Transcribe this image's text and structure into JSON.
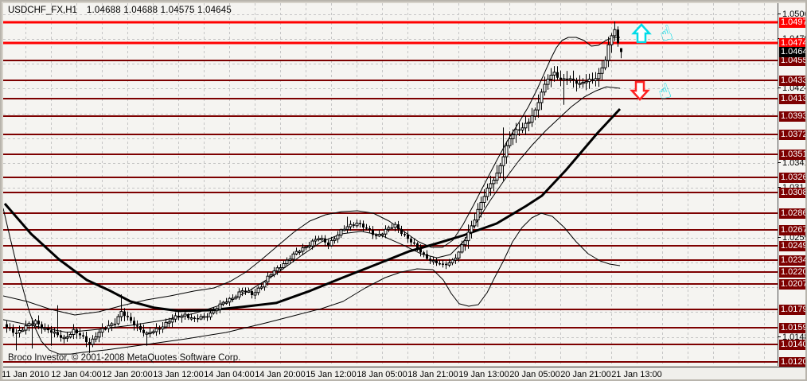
{
  "header": {
    "symbol_period": "USDCHF_FX,H1",
    "ohlc": "1.04688 1.04688 1.04575 1.04645"
  },
  "footer": {
    "copyright": "Broco Investor, © 2001-2008 MetaQuotes Software Corp."
  },
  "colors": {
    "background": "#F5F4F1",
    "window_chrome": "#D6D2CA",
    "grid": "#C6C6C6",
    "level_line": "#7D0000",
    "signal_line": "#FF0000",
    "candle": "#000000",
    "current_price_box": "#000000",
    "box_text": "#FFFFFF",
    "axis_text": "#000000",
    "arrow_up": "#00DCE8",
    "arrow_down": "#FF2222",
    "hand_icon": "#00DCE8"
  },
  "chart_data": {
    "type": "candlestick",
    "symbol": "USDCHF_FX",
    "period": "H1",
    "current_bar": {
      "open": 1.04688,
      "high": 1.04688,
      "low": 1.04575,
      "close": 1.04645
    },
    "current_price": 1.04645,
    "bars_total": 194,
    "ylim": [
      1.0115,
      1.0516
    ],
    "grid": "dashed",
    "x_labels": [
      {
        "text": "11 Jan 2010",
        "bar": 6
      },
      {
        "text": "12 Jan 04:00",
        "bar": 22
      },
      {
        "text": "12 Jan 20:00",
        "bar": 38
      },
      {
        "text": "13 Jan 12:00",
        "bar": 54
      },
      {
        "text": "14 Jan 04:00",
        "bar": 70
      },
      {
        "text": "14 Jan 20:00",
        "bar": 86
      },
      {
        "text": "15 Jan 12:00",
        "bar": 102
      },
      {
        "text": "18 Jan 05:00",
        "bar": 118
      },
      {
        "text": "18 Jan 21:00",
        "bar": 134
      },
      {
        "text": "19 Jan 13:00",
        "bar": 150
      },
      {
        "text": "20 Jan 05:00",
        "bar": 166
      },
      {
        "text": "20 Jan 21:00",
        "bar": 182
      },
      {
        "text": "21 Jan 13:00",
        "bar": 198
      }
    ],
    "y_ticks_visible": [
      1.05065,
      1.0479,
      1.0424,
      1.03415,
      1.0314,
      1.0259,
      1.01485
    ],
    "y_grid": [
      1.05065,
      1.0479,
      1.04515,
      1.0424,
      1.03965,
      1.0369,
      1.03415,
      1.0314,
      1.02865,
      1.0259,
      1.02315,
      1.0204,
      1.01765,
      1.01485
    ],
    "level_lines_dark_red": [
      1.0455,
      1.04333,
      1.04132,
      1.03936,
      1.03729,
      1.03511,
      1.0326,
      1.03089,
      1.0286,
      1.02675,
      1.02498,
      1.0234,
      1.02209,
      1.02079,
      1.01791,
      1.01594,
      1.01404,
      1.01209
    ],
    "signal_lines_red": [
      1.04975,
      1.04746
    ],
    "price_anchors": [
      [
        0,
        1.0158
      ],
      [
        3,
        1.0154
      ],
      [
        6,
        1.016
      ],
      [
        9,
        1.0166
      ],
      [
        12,
        1.0158
      ],
      [
        15,
        1.0152
      ],
      [
        18,
        1.0148
      ],
      [
        21,
        1.0155
      ],
      [
        24,
        1.0148
      ],
      [
        26,
        1.0142
      ],
      [
        28,
        1.015
      ],
      [
        31,
        1.0159
      ],
      [
        34,
        1.0166
      ],
      [
        36,
        1.0176
      ],
      [
        38,
        1.0169
      ],
      [
        41,
        1.0161
      ],
      [
        44,
        1.0151
      ],
      [
        47,
        1.0157
      ],
      [
        50,
        1.0164
      ],
      [
        53,
        1.017
      ],
      [
        56,
        1.0174
      ],
      [
        59,
        1.0168
      ],
      [
        62,
        1.0171
      ],
      [
        65,
        1.0178
      ],
      [
        68,
        1.0186
      ],
      [
        71,
        1.0193
      ],
      [
        74,
        1.02
      ],
      [
        77,
        1.0196
      ],
      [
        80,
        1.0206
      ],
      [
        83,
        1.0218
      ],
      [
        86,
        1.0228
      ],
      [
        89,
        1.0236
      ],
      [
        92,
        1.0245
      ],
      [
        95,
        1.0252
      ],
      [
        98,
        1.0258
      ],
      [
        101,
        1.0252
      ],
      [
        104,
        1.0262
      ],
      [
        107,
        1.0271
      ],
      [
        110,
        1.0276
      ],
      [
        113,
        1.0268
      ],
      [
        116,
        1.0261
      ],
      [
        119,
        1.0267
      ],
      [
        122,
        1.0272
      ],
      [
        125,
        1.0262
      ],
      [
        128,
        1.025
      ],
      [
        131,
        1.024
      ],
      [
        134,
        1.0232
      ],
      [
        137,
        1.0228
      ],
      [
        140,
        1.0234
      ],
      [
        142,
        1.0242
      ],
      [
        144,
        1.0256
      ],
      [
        146,
        1.0272
      ],
      [
        148,
        1.029
      ],
      [
        150,
        1.0305
      ],
      [
        152,
        1.0318
      ],
      [
        154,
        1.033
      ],
      [
        156,
        1.035
      ],
      [
        158,
        1.0368
      ],
      [
        160,
        1.0377
      ],
      [
        162,
        1.0382
      ],
      [
        164,
        1.0388
      ],
      [
        166,
        1.0398
      ],
      [
        168,
        1.042
      ],
      [
        170,
        1.0437
      ],
      [
        172,
        1.0441
      ],
      [
        174,
        1.0432
      ],
      [
        176,
        1.0436
      ],
      [
        178,
        1.0434
      ],
      [
        180,
        1.0428
      ],
      [
        182,
        1.0432
      ],
      [
        184,
        1.0434
      ],
      [
        186,
        1.044
      ],
      [
        188,
        1.0455
      ],
      [
        189,
        1.047
      ],
      [
        190,
        1.0483
      ],
      [
        191,
        1.049
      ],
      [
        192,
        1.0474
      ],
      [
        193,
        1.04645
      ]
    ],
    "wick_events": [
      {
        "bar": 3,
        "low": 1.0134
      },
      {
        "bar": 8,
        "low": 1.0136
      },
      {
        "bar": 14,
        "low": 1.0139
      },
      {
        "bar": 16,
        "high": 1.0184
      },
      {
        "bar": 26,
        "low": 1.0131
      },
      {
        "bar": 36,
        "high": 1.0196
      },
      {
        "bar": 44,
        "low": 1.0139
      },
      {
        "bar": 107,
        "high": 1.0282
      },
      {
        "bar": 156,
        "low": 1.0322,
        "high": 1.0381
      },
      {
        "bar": 175,
        "low": 1.0406
      },
      {
        "bar": 191,
        "high": 1.04975
      }
    ],
    "series_lines": {
      "ma_slow": [
        [
          2,
          1.02966
        ],
        [
          35,
          1.02631
        ],
        [
          70,
          1.02349
        ],
        [
          105,
          1.0212
        ],
        [
          135,
          1.01997
        ],
        [
          160,
          1.01882
        ],
        [
          190,
          1.01812
        ],
        [
          220,
          1.01777
        ],
        [
          260,
          1.01785
        ],
        [
          300,
          1.01821
        ],
        [
          343,
          1.01865
        ],
        [
          385,
          1.01997
        ],
        [
          427,
          1.02147
        ],
        [
          470,
          1.02296
        ],
        [
          510,
          1.02437
        ],
        [
          545,
          1.02525
        ],
        [
          578,
          1.02613
        ],
        [
          620,
          1.02745
        ],
        [
          657,
          1.02939
        ],
        [
          677,
          1.03054
        ],
        [
          707,
          1.03336
        ],
        [
          747,
          1.0375
        ],
        [
          775,
          1.04014
        ]
      ],
      "band_upper": [
        [
          0,
          1.01944
        ],
        [
          30,
          1.01882
        ],
        [
          60,
          1.01794
        ],
        [
          90,
          1.01732
        ],
        [
          120,
          1.01767
        ],
        [
          150,
          1.01838
        ],
        [
          180,
          1.019
        ],
        [
          210,
          1.01944
        ],
        [
          240,
          1.01997
        ],
        [
          265,
          1.02032
        ],
        [
          285,
          1.02103
        ],
        [
          305,
          1.02208
        ],
        [
          325,
          1.02349
        ],
        [
          345,
          1.02499
        ],
        [
          365,
          1.02648
        ],
        [
          385,
          1.02772
        ],
        [
          405,
          1.02842
        ],
        [
          425,
          1.02877
        ],
        [
          445,
          1.02886
        ],
        [
          465,
          1.0286
        ],
        [
          485,
          1.02772
        ],
        [
          505,
          1.02648
        ],
        [
          522,
          1.02543
        ],
        [
          538,
          1.02481
        ],
        [
          552,
          1.02481
        ],
        [
          565,
          1.0256
        ],
        [
          578,
          1.02736
        ],
        [
          592,
          1.02966
        ],
        [
          606,
          1.03204
        ],
        [
          620,
          1.03441
        ],
        [
          634,
          1.0367
        ],
        [
          648,
          1.03864
        ],
        [
          660,
          1.0404
        ],
        [
          671,
          1.04234
        ],
        [
          680,
          1.0441
        ],
        [
          688,
          1.04569
        ],
        [
          695,
          1.04692
        ],
        [
          702,
          1.04772
        ],
        [
          710,
          1.04807
        ],
        [
          720,
          1.04807
        ],
        [
          730,
          1.04772
        ],
        [
          739,
          1.0471
        ],
        [
          748,
          1.04719
        ],
        [
          757,
          1.04772
        ],
        [
          766,
          1.04807
        ],
        [
          775,
          1.04807
        ]
      ],
      "band_middle": [
        [
          0,
          1.0168
        ],
        [
          40,
          1.01609
        ],
        [
          80,
          1.01539
        ],
        [
          120,
          1.01574
        ],
        [
          160,
          1.01618
        ],
        [
          200,
          1.01671
        ],
        [
          240,
          1.0175
        ],
        [
          275,
          1.01847
        ],
        [
          310,
          1.02006
        ],
        [
          345,
          1.022
        ],
        [
          375,
          1.02393
        ],
        [
          400,
          1.02543
        ],
        [
          425,
          1.02631
        ],
        [
          450,
          1.02658
        ],
        [
          475,
          1.02614
        ],
        [
          500,
          1.02517
        ],
        [
          525,
          1.0241
        ],
        [
          545,
          1.02366
        ],
        [
          562,
          1.02402
        ],
        [
          578,
          1.02543
        ],
        [
          595,
          1.02763
        ],
        [
          612,
          1.03001
        ],
        [
          630,
          1.0323
        ],
        [
          648,
          1.03441
        ],
        [
          665,
          1.03618
        ],
        [
          682,
          1.03776
        ],
        [
          698,
          1.03908
        ],
        [
          714,
          1.0404
        ],
        [
          730,
          1.04146
        ],
        [
          745,
          1.04216
        ],
        [
          758,
          1.0426
        ],
        [
          775,
          1.04243
        ]
      ],
      "band_lower": [
        [
          0,
          1.02913
        ],
        [
          8,
          1.02613
        ],
        [
          16,
          1.02322
        ],
        [
          24,
          1.02049
        ],
        [
          32,
          1.01794
        ],
        [
          40,
          1.01591
        ],
        [
          48,
          1.01441
        ],
        [
          58,
          1.01344
        ],
        [
          70,
          1.013
        ],
        [
          85,
          1.013
        ],
        [
          100,
          1.01318
        ],
        [
          130,
          1.01345
        ],
        [
          180,
          1.01406
        ],
        [
          230,
          1.01468
        ],
        [
          280,
          1.01538
        ],
        [
          330,
          1.01644
        ],
        [
          365,
          1.01723
        ],
        [
          400,
          1.01803
        ],
        [
          427,
          1.01882
        ],
        [
          455,
          1.02032
        ],
        [
          480,
          1.02146
        ],
        [
          500,
          1.02208
        ],
        [
          520,
          1.02243
        ],
        [
          540,
          1.02234
        ],
        [
          553,
          1.0212
        ],
        [
          563,
          1.0197
        ],
        [
          573,
          1.01856
        ],
        [
          585,
          1.01829
        ],
        [
          597,
          1.01847
        ],
        [
          608,
          1.01979
        ],
        [
          618,
          1.02155
        ],
        [
          628,
          1.02322
        ],
        [
          640,
          1.02543
        ],
        [
          652,
          1.02701
        ],
        [
          664,
          1.02807
        ],
        [
          676,
          1.0286
        ],
        [
          690,
          1.02825
        ],
        [
          705,
          1.02701
        ],
        [
          720,
          1.02543
        ],
        [
          735,
          1.02411
        ],
        [
          750,
          1.02331
        ],
        [
          762,
          1.02296
        ],
        [
          775,
          1.02278
        ]
      ]
    },
    "annotations": [
      {
        "type": "arrow-up",
        "x": 802,
        "y": 38
      },
      {
        "type": "thumb-up",
        "x": 833,
        "y": 39
      },
      {
        "type": "arrow-down",
        "x": 800,
        "y": 110
      },
      {
        "type": "thumb-up",
        "x": 831,
        "y": 112
      }
    ]
  }
}
